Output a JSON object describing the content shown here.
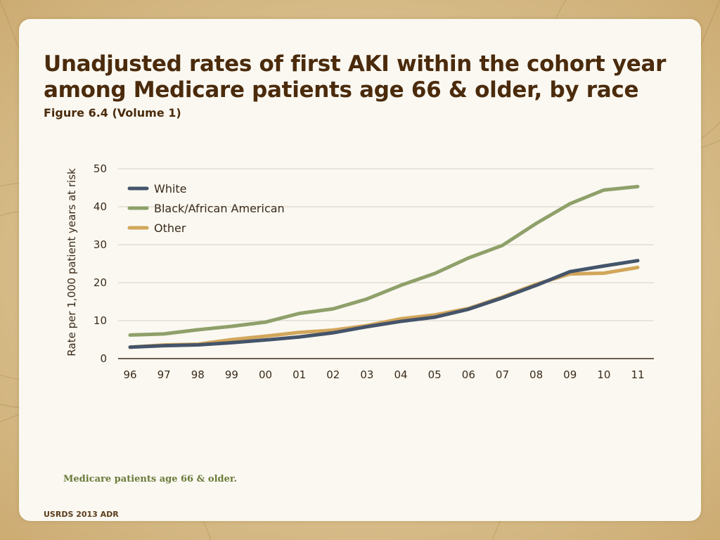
{
  "slide": {
    "title_line1": "Unadjusted rates of first AKI within the cohort year",
    "title_line2": "among Medicare patients age 66 & older, by race",
    "subtitle": "Figure 6.4 (Volume 1)",
    "note": "Medicare patients age 66 & older.",
    "footer": "USRDS 2013 ADR"
  },
  "chart_data": {
    "type": "line",
    "title": "",
    "xlabel": "",
    "ylabel": "Rate per 1,000 patient years at risk",
    "categories": [
      "96",
      "97",
      "98",
      "99",
      "00",
      "01",
      "02",
      "03",
      "04",
      "05",
      "06",
      "07",
      "08",
      "09",
      "10",
      "11"
    ],
    "ylim": [
      0,
      50
    ],
    "yticks": [
      0,
      10,
      20,
      30,
      40,
      50
    ],
    "grid": true,
    "legend_position": "top-left",
    "series": [
      {
        "name": "White",
        "color": "#44546a",
        "values": [
          3.0,
          3.4,
          3.6,
          4.2,
          4.9,
          5.7,
          6.8,
          8.4,
          9.8,
          10.9,
          13.0,
          16.0,
          19.3,
          22.9,
          24.4,
          25.8
        ]
      },
      {
        "name": "Black/African American",
        "color": "#8fa06a",
        "values": [
          6.2,
          6.5,
          7.6,
          8.5,
          9.6,
          11.9,
          13.1,
          15.7,
          19.3,
          22.4,
          26.5,
          29.8,
          35.6,
          40.8,
          44.4,
          45.3
        ]
      },
      {
        "name": "Other",
        "color": "#d2a65a",
        "values": [
          3.0,
          3.6,
          3.8,
          5.0,
          5.9,
          6.9,
          7.5,
          8.7,
          10.5,
          11.5,
          13.2,
          16.2,
          19.6,
          22.3,
          22.5,
          24.0
        ]
      }
    ]
  }
}
